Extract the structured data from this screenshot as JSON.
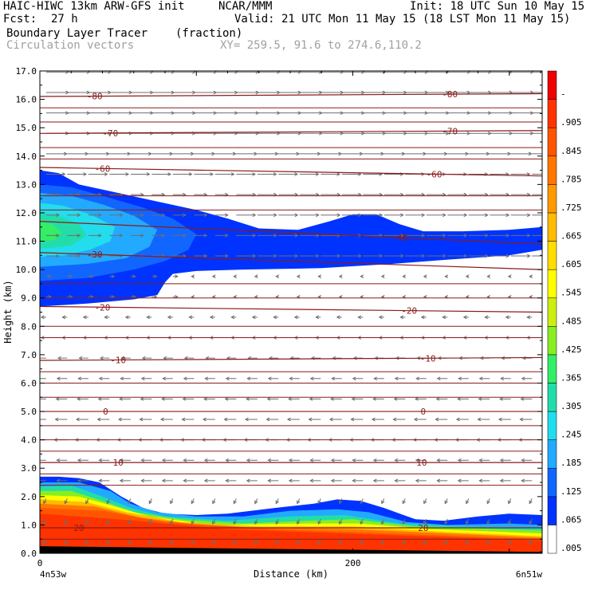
{
  "header": {
    "model": "HAIC-HIWC 13km ARW-GFS init",
    "org": "NCAR/MMM",
    "init": "Init: 18 UTC Sun 10 May 15",
    "fcst_label": "Fcst:",
    "fcst_value": "27 h",
    "valid": "Valid: 21 UTC Mon 11 May 15 (18 LST Mon 11 May 15)",
    "field": "Boundary Layer Tracer",
    "units": "(fraction)",
    "vectors": "Circulation vectors",
    "xy": "XY= 259.5, 91.6 to 274.6,110.2"
  },
  "chart_data": {
    "type": "heatmap",
    "ylabel": "Height (km)",
    "xlabel": "Distance (km)",
    "ylim": [
      0,
      17
    ],
    "xlim": [
      0,
      321
    ],
    "yticks": [
      "0.0",
      "1.0",
      "2.0",
      "3.0",
      "4.0",
      "5.0",
      "6.0",
      "7.0",
      "8.0",
      "9.0",
      "10.0",
      "11.0",
      "12.0",
      "13.0",
      "14.0",
      "15.0",
      "16.0",
      "17.0"
    ],
    "xticks": [
      {
        "value": 0,
        "label": "0"
      },
      {
        "value": 200,
        "label": "200"
      }
    ],
    "x_endpoints": {
      "left": "4n53w",
      "right": "6n51w"
    },
    "colorbar": {
      "labels": [
        ".005",
        ".065",
        ".125",
        ".185",
        ".245",
        ".305",
        ".365",
        ".425",
        ".485",
        ".545",
        ".605",
        ".665",
        ".725",
        ".785",
        ".845",
        ".905",
        "-"
      ],
      "colors": [
        "#ffffff",
        "#0033ff",
        "#1166ff",
        "#22aaff",
        "#22ddee",
        "#22ddaa",
        "#33ee66",
        "#88ee22",
        "#ccee11",
        "#ffff00",
        "#ffdd00",
        "#ffbb00",
        "#ff9900",
        "#ff7700",
        "#ff5500",
        "#ff3300",
        "#ee0000"
      ]
    },
    "isotherms": [
      {
        "label": "-80",
        "h0": 16.1,
        "h1": 16.2,
        "labels_at": [
          35,
          262
        ]
      },
      {
        "label": "-70",
        "h0": 14.8,
        "h1": 14.9,
        "labels_at": [
          45,
          262
        ]
      },
      {
        "label": "-60",
        "h0": 13.6,
        "h1": 13.3,
        "labels_at": [
          40,
          252
        ]
      },
      {
        "label": "-40",
        "h0": 11.7,
        "h1": 10.9,
        "labels_at": [
          230
        ]
      },
      {
        "label": "-30",
        "h0": 10.6,
        "h1": 10.0,
        "labels_at": [
          35
        ]
      },
      {
        "label": "-20",
        "h0": 8.7,
        "h1": 8.5,
        "labels_at": [
          40,
          236
        ]
      },
      {
        "label": "-10",
        "h0": 6.8,
        "h1": 6.9,
        "labels_at": [
          50,
          248
        ]
      },
      {
        "label": "0",
        "h0": 5.0,
        "h1": 5.0,
        "labels_at": [
          42,
          245
        ]
      },
      {
        "label": "10",
        "h0": 3.2,
        "h1": 3.2,
        "labels_at": [
          50,
          244
        ]
      },
      {
        "label": "20",
        "h0": 0.9,
        "h1": 0.9,
        "labels_at": [
          25,
          245
        ]
      }
    ],
    "extra_temp_lines": [
      15.7,
      15.2,
      14.3,
      13.9,
      12.6,
      12.1,
      9.5,
      9.0,
      8.0,
      7.6,
      6.4,
      6.0,
      5.5,
      4.5,
      4.0,
      3.6,
      2.8,
      2.4,
      0.5
    ]
  }
}
